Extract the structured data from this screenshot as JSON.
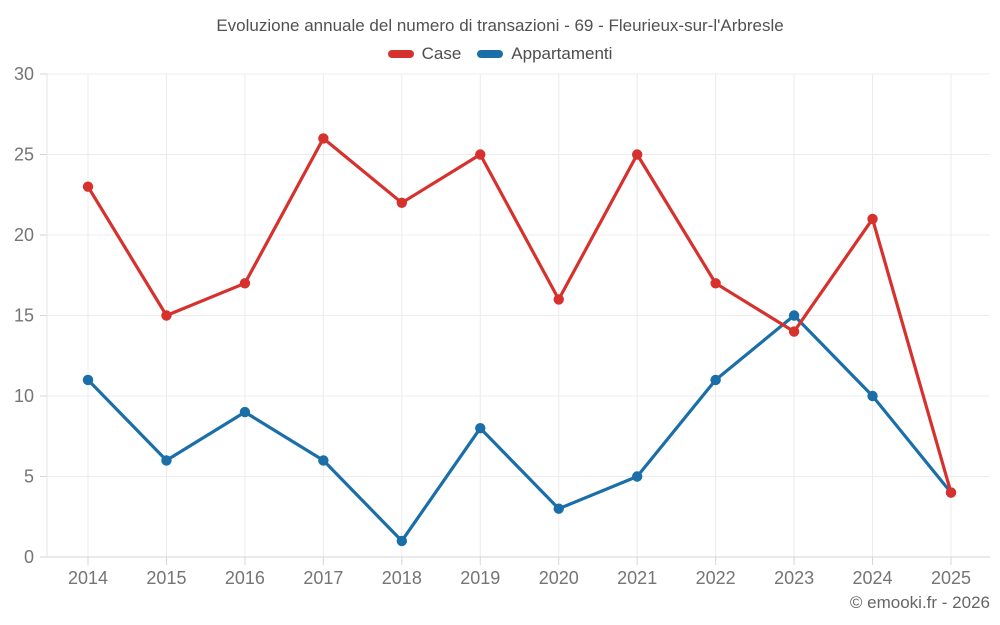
{
  "header": {
    "title": "Evoluzione annuale del numero di transazioni - 69 - Fleurieux-sur-l'Arbresle"
  },
  "chart_data": {
    "type": "line",
    "title": "Evoluzione annuale del numero di transazioni - 69 - Fleurieux-sur-l'Arbresle",
    "x": [
      2014,
      2015,
      2016,
      2017,
      2018,
      2019,
      2020,
      2021,
      2022,
      2023,
      2024,
      2025
    ],
    "series": [
      {
        "name": "Case",
        "color": "#d7312e",
        "values": [
          23,
          15,
          17,
          26,
          22,
          25,
          16,
          25,
          17,
          14,
          21,
          4
        ]
      },
      {
        "name": "Appartamenti",
        "color": "#1a6fa8",
        "values": [
          11,
          6,
          9,
          6,
          1,
          8,
          3,
          5,
          11,
          15,
          10,
          4
        ]
      }
    ],
    "xlabel": "",
    "ylabel": "",
    "ylim": [
      0,
      30
    ],
    "yticks": [
      0,
      5,
      10,
      15,
      20,
      25,
      30
    ],
    "grid": true,
    "legend_position": "top",
    "colors": {
      "gridline": "#ececec",
      "axis_line": "#d6d6d6",
      "y_axis_line": "#e4e4e4",
      "tick_label": "#757575"
    }
  },
  "footer": {
    "credit": "© emooki.fr - 2026"
  }
}
